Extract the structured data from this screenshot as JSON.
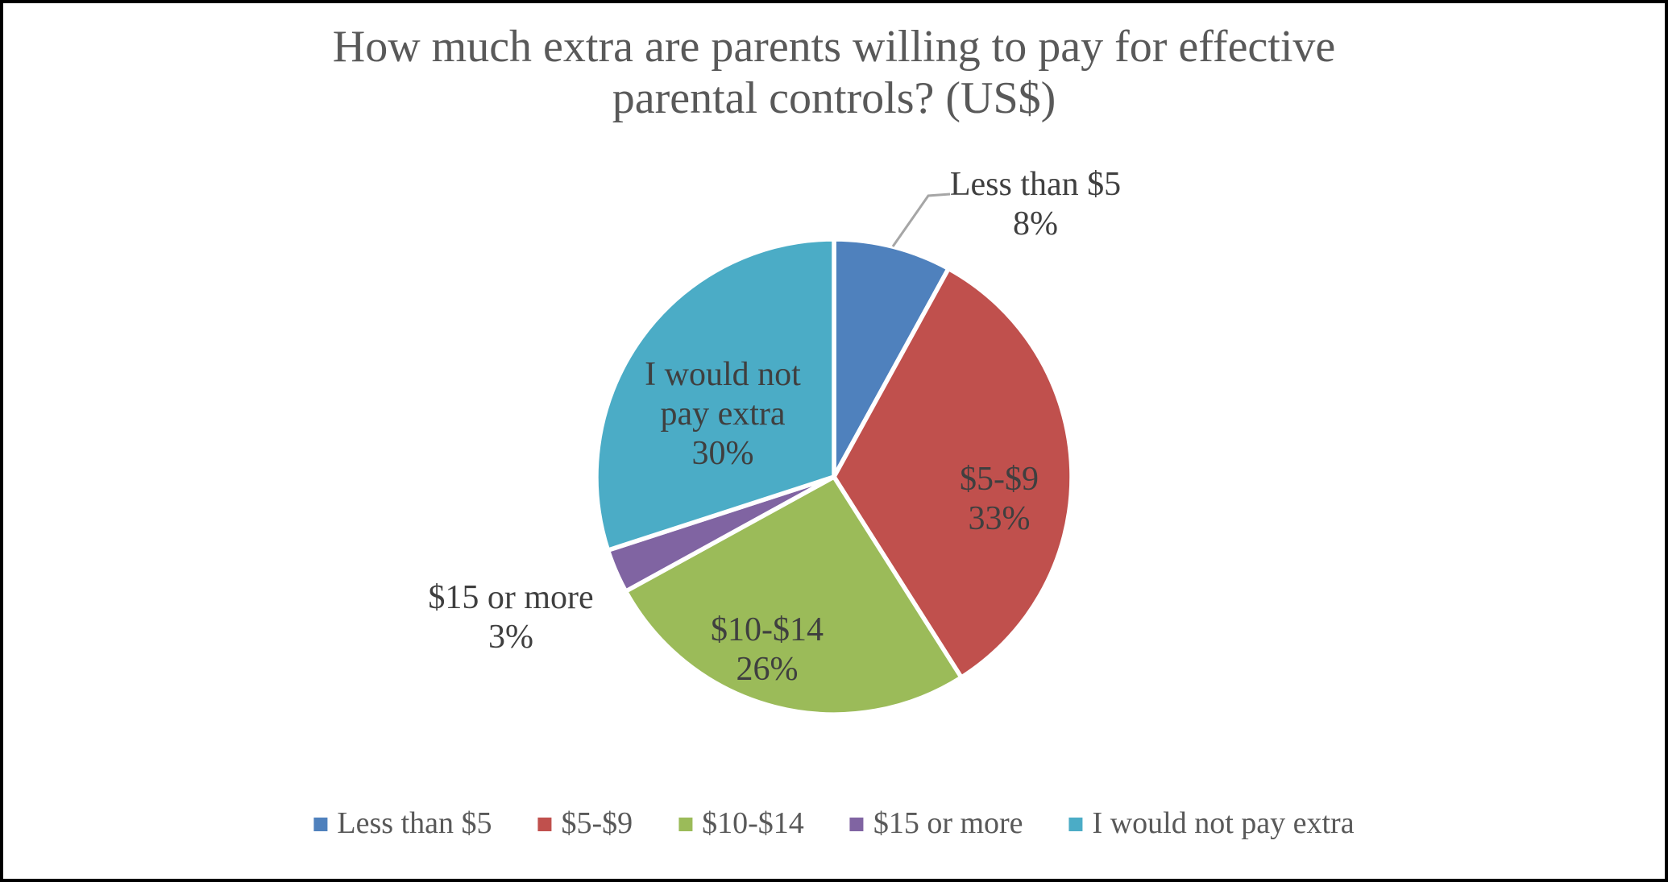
{
  "title": {
    "line1": "How much extra are parents willing to pay for effective",
    "line2": "parental controls? (US$)"
  },
  "chart_data": {
    "type": "pie",
    "title": "How much extra are parents willing to pay for effective parental controls? (US$)",
    "categories": [
      "Less than $5",
      "$5-$9",
      "$10-$14",
      "$15 or more",
      "I would not pay extra"
    ],
    "values": [
      8,
      33,
      26,
      3,
      30
    ],
    "unit": "%",
    "colors": [
      "#4F81BD",
      "#C0504D",
      "#9BBB59",
      "#8064A2",
      "#4BACC6"
    ],
    "start_angle_deg": 0,
    "direction": "clockwise",
    "legend_position": "bottom",
    "data_labels": [
      {
        "lines": [
          "Less than $5",
          "8%"
        ],
        "placement": "outside-with-leader"
      },
      {
        "lines": [
          "$5-$9",
          "33%"
        ],
        "placement": "inside"
      },
      {
        "lines": [
          "$10-$14",
          "26%"
        ],
        "placement": "inside"
      },
      {
        "lines": [
          "$15 or more",
          "3%"
        ],
        "placement": "outside"
      },
      {
        "lines": [
          "I would not",
          "pay extra",
          "30%"
        ],
        "placement": "inside"
      }
    ]
  },
  "styles": {
    "title_color": "#595959",
    "label_color": "#3F3F3F",
    "legend_color": "#595959",
    "leader_line_color": "#A6A6A6",
    "slice_border_color": "#FFFFFF",
    "frame_border_color": "#000000",
    "background_color": "#FFFFFF"
  }
}
